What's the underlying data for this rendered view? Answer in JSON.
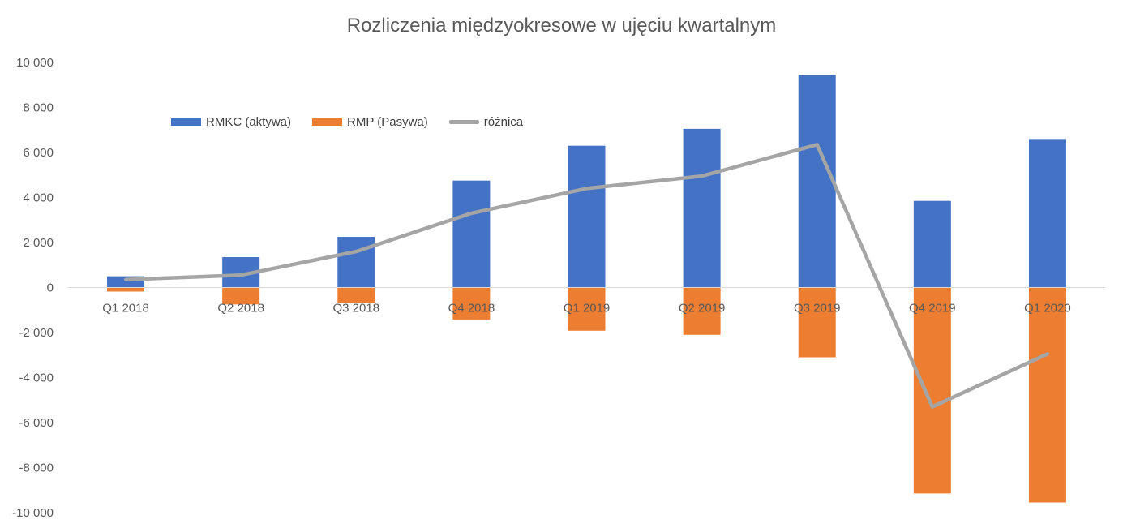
{
  "chart_data": {
    "type": "bar",
    "title": "Rozliczenia międzyokresowe w ujęciu kwartalnym",
    "categories": [
      "Q1 2018",
      "Q2 2018",
      "Q3 2018",
      "Q4 2018",
      "Q1 2019",
      "Q2 2019",
      "Q3 2019",
      "Q4 2019",
      "Q1 2020"
    ],
    "series": [
      {
        "name": "RMKC (aktywa)",
        "kind": "bar",
        "color": "#4472C4",
        "values": [
          500,
          1350,
          2250,
          4750,
          6300,
          7050,
          9450,
          3850,
          6600
        ]
      },
      {
        "name": "RMP (Pasywa)",
        "kind": "bar",
        "color": "#ED7D31",
        "values": [
          -180,
          -750,
          -680,
          -1420,
          -1920,
          -2100,
          -3100,
          -9150,
          -9550
        ]
      },
      {
        "name": "różnica",
        "kind": "line",
        "color": "#A5A5A5",
        "values": [
          350,
          550,
          1600,
          3300,
          4400,
          4950,
          6350,
          -5300,
          -2950
        ]
      }
    ],
    "yticks": [
      "10 000",
      "8 000",
      "6 000",
      "4 000",
      "2 000",
      "0",
      "-2 000",
      "-4 000",
      "-6 000",
      "-8 000",
      "-10 000"
    ],
    "ylim": [
      -10000,
      10000
    ],
    "xlabel": "",
    "ylabel": "",
    "grid": false,
    "legend_position": "top-left"
  }
}
